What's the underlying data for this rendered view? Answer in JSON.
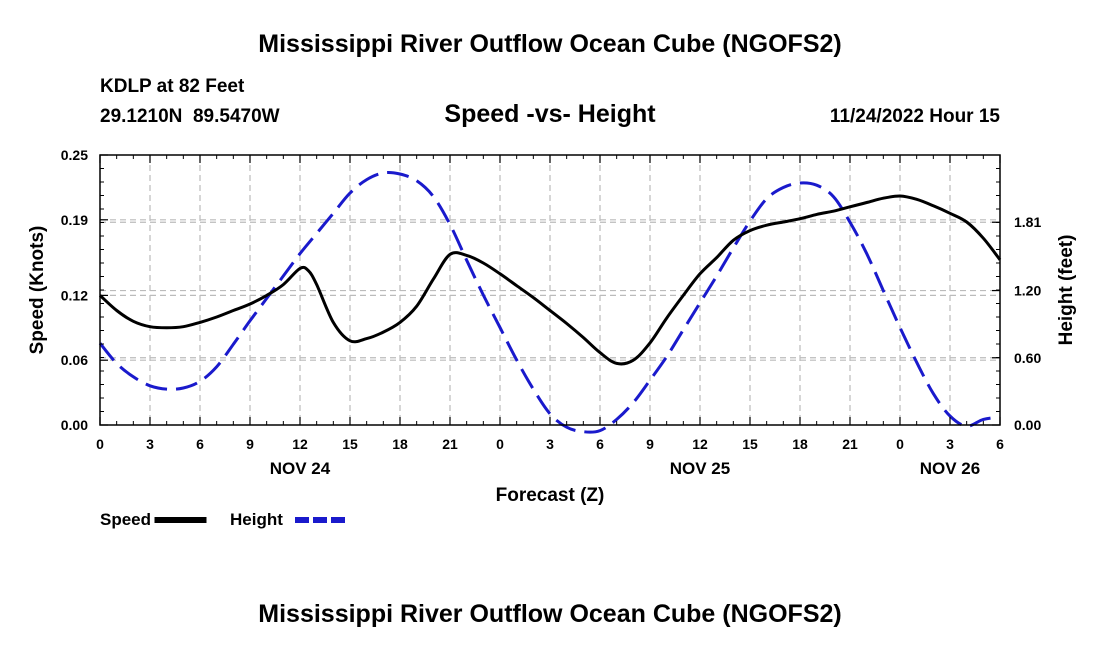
{
  "header": {
    "title": "Mississippi River Outflow Ocean Cube (NGOFS2)",
    "station": "KDLP at 82 Feet",
    "coords": "29.1210N  89.5470W",
    "subtitle": "Speed -vs- Height",
    "datetime": "11/24/2022 Hour 15"
  },
  "footer": {
    "title": "Mississippi River Outflow Ocean Cube (NGOFS2)"
  },
  "chart_data": {
    "type": "line",
    "title": "Speed -vs- Height",
    "xlabel": "Forecast (Z)",
    "ylabel": "Speed (Knots)",
    "y2label": "Height (feet)",
    "x_range": [
      0,
      54
    ],
    "x_ticks": [
      0,
      3,
      6,
      9,
      12,
      15,
      18,
      21,
      24,
      27,
      30,
      33,
      36,
      39,
      42,
      45,
      48,
      51,
      54
    ],
    "x_tick_labels": [
      "0",
      "3",
      "6",
      "9",
      "12",
      "15",
      "18",
      "21",
      "0",
      "3",
      "6",
      "9",
      "12",
      "15",
      "18",
      "21",
      "0",
      "3",
      "6"
    ],
    "date_labels": [
      {
        "x": 12,
        "label": "NOV 24"
      },
      {
        "x": 36,
        "label": "NOV 25"
      },
      {
        "x": 51,
        "label": "NOV 26"
      }
    ],
    "ylim": [
      0,
      0.25
    ],
    "y_ticks": [
      0.0,
      0.06,
      0.12,
      0.19,
      0.25
    ],
    "y_tick_labels": [
      "0.00",
      "0.06",
      "0.12",
      "0.19",
      "0.25"
    ],
    "y2lim": [
      0,
      2.41
    ],
    "y2_ticks": [
      0.0,
      0.6,
      1.2,
      1.81
    ],
    "y2_tick_labels": [
      "0.00",
      "0.60",
      "1.20",
      "1.81"
    ],
    "grid": true,
    "series": [
      {
        "name": "Speed",
        "axis": "left",
        "color": "#000000",
        "dash": "solid",
        "x": [
          0,
          1,
          2,
          3,
          4,
          5,
          6,
          7,
          8,
          9,
          10,
          11,
          12,
          12.5,
          13,
          14,
          15,
          16,
          17,
          18,
          19,
          20,
          21,
          22,
          23,
          24,
          25,
          26,
          27,
          28,
          29,
          30,
          31,
          32,
          33,
          34,
          35,
          36,
          37,
          38,
          39,
          40,
          41,
          42,
          43,
          44,
          45,
          46,
          47,
          48,
          49,
          50,
          51,
          52,
          53,
          54
        ],
        "values": [
          0.12,
          0.106,
          0.096,
          0.091,
          0.09,
          0.091,
          0.095,
          0.1,
          0.106,
          0.112,
          0.12,
          0.13,
          0.145,
          0.143,
          0.13,
          0.095,
          0.078,
          0.08,
          0.086,
          0.095,
          0.11,
          0.135,
          0.158,
          0.157,
          0.15,
          0.14,
          0.129,
          0.118,
          0.106,
          0.094,
          0.081,
          0.067,
          0.057,
          0.06,
          0.076,
          0.099,
          0.12,
          0.14,
          0.155,
          0.171,
          0.18,
          0.185,
          0.188,
          0.191,
          0.195,
          0.198,
          0.202,
          0.206,
          0.21,
          0.212,
          0.209,
          0.203,
          0.196,
          0.188,
          0.173,
          0.153
        ],
        "values_note": "black solid line"
      },
      {
        "name": "Height",
        "axis": "right",
        "color": "#1a1acc",
        "dash": "dashed",
        "x": [
          0,
          1,
          2,
          3,
          4,
          5,
          6,
          7,
          8,
          9,
          10,
          11,
          12,
          13,
          14,
          15,
          16,
          17,
          18,
          19,
          20,
          21,
          22,
          23,
          24,
          25,
          26,
          27,
          28,
          29,
          30,
          31,
          32,
          33,
          34,
          35,
          36,
          37,
          38,
          39,
          40,
          41,
          42,
          43,
          44,
          45,
          46,
          47,
          48,
          49,
          50,
          51,
          52,
          53,
          54
        ],
        "values": [
          0.73,
          0.55,
          0.43,
          0.35,
          0.32,
          0.33,
          0.39,
          0.52,
          0.72,
          0.93,
          1.13,
          1.33,
          1.53,
          1.71,
          1.89,
          2.07,
          2.19,
          2.25,
          2.24,
          2.18,
          2.04,
          1.79,
          1.47,
          1.16,
          0.87,
          0.58,
          0.32,
          0.1,
          -0.02,
          -0.06,
          -0.05,
          0.05,
          0.2,
          0.4,
          0.61,
          0.85,
          1.09,
          1.33,
          1.58,
          1.82,
          2.02,
          2.12,
          2.16,
          2.14,
          2.04,
          1.81,
          1.53,
          1.2,
          0.87,
          0.56,
          0.28,
          0.08,
          -0.01,
          0.05,
          0.07
        ]
      }
    ],
    "legend": [
      {
        "label": "Speed",
        "color": "#000000",
        "dash": "solid"
      },
      {
        "label": "Height",
        "color": "#1a1acc",
        "dash": "dashed"
      }
    ],
    "legend_position": "bottom-left"
  }
}
